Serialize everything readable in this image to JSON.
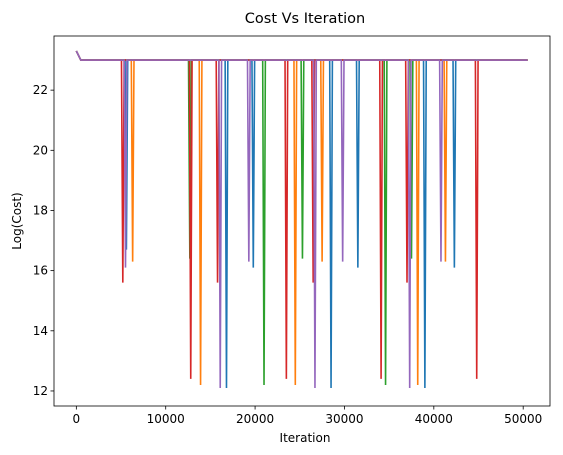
{
  "chart_data": {
    "type": "line",
    "title": "Cost Vs Iteration",
    "xlabel": "Iteration",
    "ylabel": "Log(Cost)",
    "xlim": [
      -2500,
      53000
    ],
    "ylim": [
      11.5,
      23.8
    ],
    "xticks": [
      0,
      10000,
      20000,
      30000,
      40000,
      50000
    ],
    "xtick_labels": [
      "0",
      "10000",
      "20000",
      "30000",
      "40000",
      "50000"
    ],
    "yticks": [
      12,
      14,
      16,
      18,
      20,
      22
    ],
    "ytick_labels": [
      "12",
      "14",
      "16",
      "18",
      "20",
      "22"
    ],
    "grid": false,
    "baseline": {
      "start": [
        0,
        23.3
      ],
      "plateau": 23.0,
      "x_end": 50500
    },
    "series": [
      {
        "color": "#1f77b4",
        "spikes": [
          [
            5600,
            16.7
          ],
          [
            16800,
            12.1
          ],
          [
            19800,
            16.1
          ],
          [
            28500,
            12.1
          ],
          [
            31500,
            16.1
          ],
          [
            39000,
            12.1
          ],
          [
            42300,
            16.1
          ]
        ]
      },
      {
        "color": "#ff7f0e",
        "spikes": [
          [
            6300,
            16.3
          ],
          [
            13900,
            12.2
          ],
          [
            24500,
            12.2
          ],
          [
            27500,
            16.3
          ],
          [
            38200,
            12.2
          ],
          [
            41300,
            16.3
          ]
        ]
      },
      {
        "color": "#2ca02c",
        "spikes": [
          [
            12700,
            16.4
          ],
          [
            21000,
            12.2
          ],
          [
            25300,
            16.4
          ],
          [
            34600,
            12.2
          ],
          [
            37500,
            16.4
          ]
        ]
      },
      {
        "color": "#d62728",
        "spikes": [
          [
            5200,
            15.6
          ],
          [
            12800,
            12.4
          ],
          [
            15800,
            15.6
          ],
          [
            23500,
            12.4
          ],
          [
            26500,
            15.6
          ],
          [
            34100,
            12.4
          ],
          [
            37000,
            15.6
          ],
          [
            44800,
            12.4
          ]
        ]
      },
      {
        "color": "#9467bd",
        "spikes": [
          [
            5500,
            16.1
          ],
          [
            16100,
            12.1
          ],
          [
            19300,
            16.3
          ],
          [
            26700,
            12.1
          ],
          [
            29800,
            16.3
          ],
          [
            37300,
            12.1
          ],
          [
            40800,
            16.3
          ]
        ]
      }
    ]
  }
}
